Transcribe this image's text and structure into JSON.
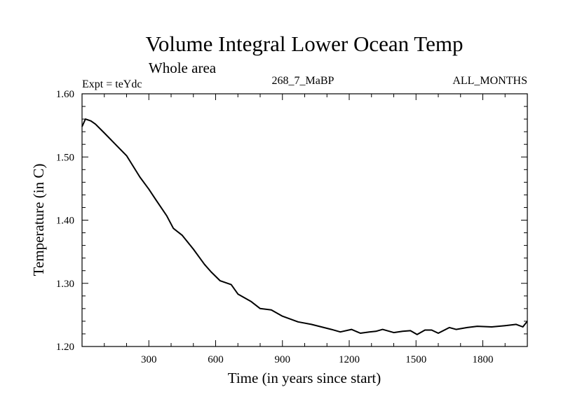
{
  "chart_data": {
    "type": "line",
    "title": "Volume Integral Lower Ocean Temp",
    "subtitle": "Whole area",
    "annotations": {
      "experiment": "Expt = teYdc",
      "period": "268_7_MaBP",
      "months": "ALL_MONTHS"
    },
    "xlabel": "Time (in years since start)",
    "ylabel": "Temperature (in C)",
    "xlim": [
      0,
      2000
    ],
    "ylim": [
      1.2,
      1.6
    ],
    "x_ticks": [
      300,
      600,
      900,
      1200,
      1500,
      1800
    ],
    "x_tick_labels": [
      "300",
      "600",
      "900",
      "1200",
      "1500",
      "1800"
    ],
    "x_minor_step": 100,
    "y_ticks": [
      1.2,
      1.3,
      1.4,
      1.5,
      1.6
    ],
    "y_tick_labels": [
      "1.20",
      "1.30",
      "1.40",
      "1.50",
      "1.60"
    ],
    "y_minor_step": 0.02,
    "grid": false,
    "line_color": "#000000",
    "series": [
      {
        "name": "teYdc",
        "x": [
          0,
          15,
          40,
          60,
          100,
          150,
          200,
          260,
          300,
          330,
          380,
          410,
          450,
          500,
          550,
          580,
          620,
          670,
          700,
          760,
          800,
          850,
          900,
          970,
          1030,
          1075,
          1120,
          1160,
          1210,
          1250,
          1290,
          1320,
          1350,
          1400,
          1440,
          1475,
          1505,
          1540,
          1570,
          1600,
          1650,
          1680,
          1730,
          1775,
          1840,
          1900,
          1950,
          1980,
          2000
        ],
        "y": [
          1.548,
          1.56,
          1.557,
          1.552,
          1.538,
          1.52,
          1.502,
          1.468,
          1.449,
          1.433,
          1.407,
          1.387,
          1.376,
          1.354,
          1.33,
          1.318,
          1.304,
          1.298,
          1.283,
          1.271,
          1.26,
          1.258,
          1.248,
          1.239,
          1.235,
          1.231,
          1.227,
          1.223,
          1.227,
          1.221,
          1.223,
          1.224,
          1.227,
          1.222,
          1.224,
          1.225,
          1.219,
          1.226,
          1.226,
          1.221,
          1.23,
          1.227,
          1.23,
          1.232,
          1.231,
          1.233,
          1.235,
          1.231,
          1.24
        ]
      }
    ]
  }
}
